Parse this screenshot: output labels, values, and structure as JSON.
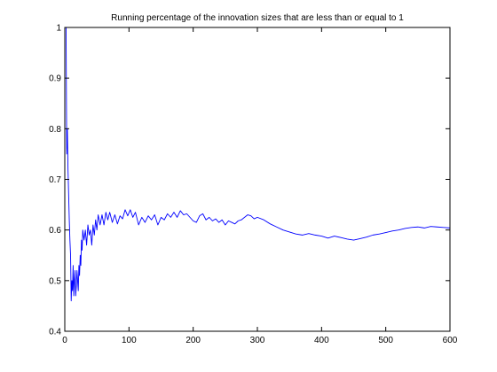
{
  "chart_data": {
    "type": "line",
    "title": "Running percentage of the innovation sizes that are less than or equal to 1",
    "xlabel": "",
    "ylabel": "",
    "xlim": [
      0,
      600
    ],
    "ylim": [
      0.4,
      1
    ],
    "xticks": [
      0,
      100,
      200,
      300,
      400,
      500,
      600
    ],
    "yticks": [
      0.4,
      0.5,
      0.6,
      0.7,
      0.8,
      0.9,
      1
    ],
    "xtick_labels": [
      "0",
      "100",
      "200",
      "300",
      "400",
      "500",
      "600"
    ],
    "ytick_labels": [
      "0.4",
      "0.5",
      "0.6",
      "0.7",
      "0.8",
      "0.9",
      "1"
    ],
    "grid": false,
    "series": [
      {
        "color": "#0000ff",
        "x": [
          1,
          2,
          3,
          4,
          5,
          6,
          7,
          8,
          9,
          10,
          11,
          12,
          13,
          14,
          15,
          16,
          17,
          18,
          19,
          20,
          21,
          22,
          23,
          24,
          25,
          26,
          27,
          28,
          30,
          32,
          34,
          36,
          38,
          40,
          42,
          44,
          46,
          48,
          50,
          52,
          55,
          58,
          61,
          64,
          67,
          70,
          74,
          78,
          82,
          86,
          90,
          94,
          98,
          102,
          106,
          110,
          115,
          120,
          125,
          130,
          135,
          140,
          145,
          150,
          155,
          160,
          165,
          170,
          175,
          180,
          185,
          190,
          195,
          200,
          205,
          210,
          215,
          220,
          225,
          230,
          235,
          240,
          245,
          250,
          255,
          260,
          265,
          270,
          275,
          280,
          285,
          290,
          295,
          300,
          310,
          320,
          330,
          340,
          350,
          360,
          370,
          380,
          390,
          400,
          410,
          420,
          430,
          440,
          450,
          460,
          470,
          480,
          490,
          500,
          510,
          520,
          530,
          540,
          550,
          560,
          570,
          580,
          590,
          600
        ],
        "y": [
          1.0,
          1.0,
          0.75,
          0.8,
          0.72,
          0.67,
          0.62,
          0.58,
          0.55,
          0.46,
          0.5,
          0.48,
          0.53,
          0.47,
          0.5,
          0.52,
          0.47,
          0.49,
          0.52,
          0.5,
          0.48,
          0.53,
          0.51,
          0.55,
          0.53,
          0.58,
          0.56,
          0.6,
          0.58,
          0.6,
          0.57,
          0.61,
          0.59,
          0.6,
          0.57,
          0.61,
          0.59,
          0.62,
          0.6,
          0.63,
          0.61,
          0.63,
          0.61,
          0.635,
          0.62,
          0.635,
          0.615,
          0.63,
          0.612,
          0.628,
          0.622,
          0.64,
          0.628,
          0.64,
          0.625,
          0.635,
          0.61,
          0.625,
          0.615,
          0.628,
          0.62,
          0.63,
          0.61,
          0.625,
          0.62,
          0.632,
          0.625,
          0.635,
          0.625,
          0.638,
          0.63,
          0.632,
          0.625,
          0.618,
          0.615,
          0.628,
          0.632,
          0.62,
          0.625,
          0.618,
          0.622,
          0.615,
          0.62,
          0.61,
          0.618,
          0.615,
          0.612,
          0.618,
          0.62,
          0.625,
          0.63,
          0.628,
          0.622,
          0.625,
          0.62,
          0.612,
          0.606,
          0.6,
          0.596,
          0.592,
          0.59,
          0.593,
          0.59,
          0.588,
          0.584,
          0.588,
          0.585,
          0.582,
          0.58,
          0.583,
          0.586,
          0.59,
          0.592,
          0.595,
          0.598,
          0.6,
          0.603,
          0.605,
          0.606,
          0.604,
          0.607,
          0.606,
          0.605,
          0.604
        ]
      }
    ]
  }
}
